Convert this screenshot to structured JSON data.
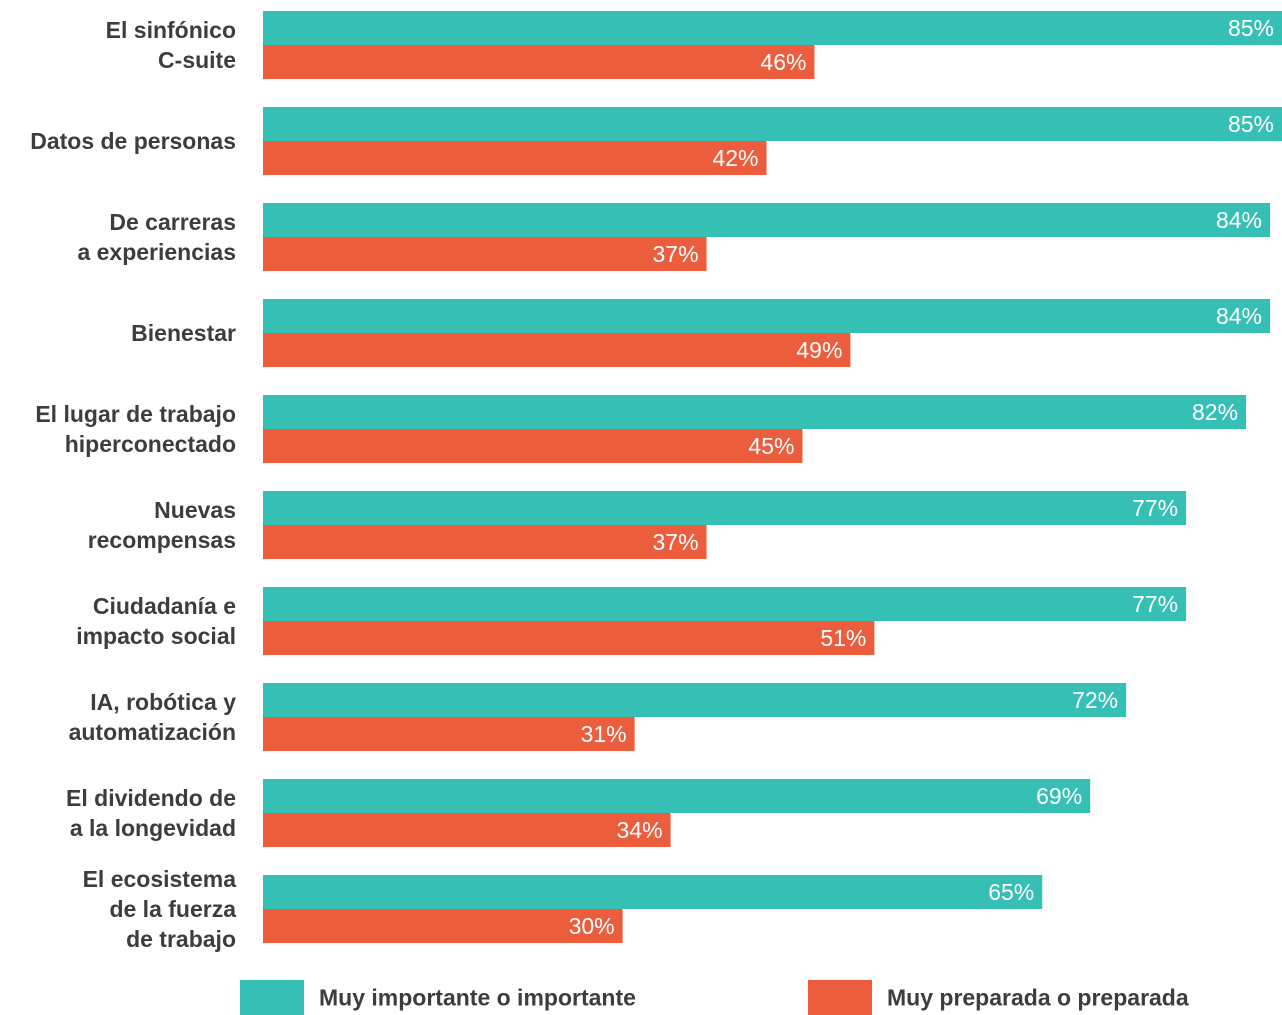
{
  "chart_data": {
    "type": "bar",
    "orientation": "horizontal",
    "categories": [
      [
        "El sinfónico",
        "C-suite"
      ],
      [
        "Datos de personas"
      ],
      [
        "De carreras",
        "a experiencias"
      ],
      [
        "Bienestar"
      ],
      [
        "El lugar de trabajo",
        "hiperconectado"
      ],
      [
        "Nuevas",
        "recompensas"
      ],
      [
        "Ciudadanía e",
        "impacto social"
      ],
      [
        "IA, robótica y",
        "automatización"
      ],
      [
        "El dividendo de",
        "a la longevidad"
      ],
      [
        "El ecosistema",
        "de la fuerza",
        "de trabajo"
      ]
    ],
    "series": [
      {
        "name": "Muy importante o importante",
        "color": "#36bfb4",
        "values": [
          85,
          85,
          84,
          84,
          82,
          77,
          77,
          72,
          69,
          65
        ],
        "labels": [
          "85%",
          "85%",
          "84%",
          "84%",
          "82%",
          "77%",
          "77%",
          "72%",
          "69%",
          "65%"
        ]
      },
      {
        "name": "Muy preparada o preparada",
        "color": "#ec5d3e",
        "values": [
          46,
          42,
          37,
          49,
          45,
          37,
          51,
          31,
          34,
          30
        ],
        "labels": [
          "46%",
          "42%",
          "37%",
          "49%",
          "45%",
          "37%",
          "51%",
          "31%",
          "34%",
          "30%"
        ]
      }
    ],
    "xlim": [
      0,
      85
    ],
    "unit": "%",
    "grid": false,
    "legend_position": "bottom"
  }
}
